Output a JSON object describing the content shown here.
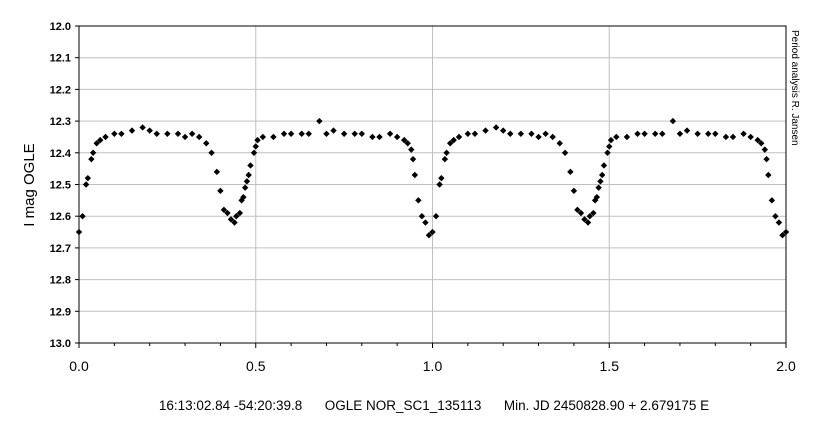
{
  "chart_data": {
    "type": "scatter",
    "ylabel": "I mag OGLE",
    "xlabel": "",
    "xlim": [
      0.0,
      2.0
    ],
    "ylim": [
      12.0,
      13.0
    ],
    "y_inverted": true,
    "grid": true,
    "x_ticks": [
      "0.0",
      "0.5",
      "1.0",
      "1.5",
      "2.0"
    ],
    "y_ticks": [
      "12.0",
      "12.1",
      "12.2",
      "12.3",
      "12.4",
      "12.5",
      "12.6",
      "12.7",
      "12.8",
      "12.9",
      "13.0"
    ],
    "footer_text": "16:13:02.84 -54:20:39.8      OGLE NOR_SC1_135113      Min. JD 2450828.90 + 2.679175 E",
    "side_text": "Period analysis R. Jansen",
    "marker_color": "#000000",
    "series": [
      {
        "marker": "diamond",
        "x": [
          0.0,
          0.01,
          0.02,
          0.025,
          0.035,
          0.04,
          0.05,
          0.06,
          0.075,
          0.1,
          0.12,
          0.15,
          0.18,
          0.2,
          0.22,
          0.25,
          0.28,
          0.3,
          0.32,
          0.34,
          0.36,
          0.375,
          0.39,
          0.4,
          0.41,
          0.42,
          0.43,
          0.44,
          0.445,
          0.455,
          0.46,
          0.465,
          0.47,
          0.475,
          0.48,
          0.485,
          0.495,
          0.5,
          0.505,
          0.52,
          0.55,
          0.58,
          0.6,
          0.63,
          0.65,
          0.68,
          0.7,
          0.72,
          0.75,
          0.78,
          0.8,
          0.83,
          0.85,
          0.88,
          0.9,
          0.92,
          0.93,
          0.94,
          0.945,
          0.95,
          0.96,
          0.97,
          0.98,
          0.99,
          1.0,
          1.01,
          1.02,
          1.025,
          1.035,
          1.04,
          1.05,
          1.06,
          1.075,
          1.1,
          1.12,
          1.15,
          1.18,
          1.2,
          1.22,
          1.25,
          1.28,
          1.3,
          1.32,
          1.34,
          1.36,
          1.375,
          1.39,
          1.4,
          1.41,
          1.42,
          1.43,
          1.44,
          1.445,
          1.455,
          1.46,
          1.465,
          1.47,
          1.475,
          1.48,
          1.485,
          1.495,
          1.5,
          1.505,
          1.52,
          1.55,
          1.58,
          1.6,
          1.63,
          1.65,
          1.68,
          1.7,
          1.72,
          1.75,
          1.78,
          1.8,
          1.83,
          1.85,
          1.88,
          1.9,
          1.92,
          1.93,
          1.94,
          1.945,
          1.95,
          1.96,
          1.97,
          1.98,
          1.99,
          2.0
        ],
        "y": [
          12.65,
          12.6,
          12.5,
          12.48,
          12.42,
          12.4,
          12.37,
          12.36,
          12.35,
          12.34,
          12.34,
          12.33,
          12.32,
          12.33,
          12.34,
          12.34,
          12.34,
          12.35,
          12.34,
          12.35,
          12.37,
          12.4,
          12.46,
          12.52,
          12.58,
          12.59,
          12.61,
          12.62,
          12.6,
          12.59,
          12.55,
          12.54,
          12.51,
          12.49,
          12.47,
          12.44,
          12.4,
          12.38,
          12.36,
          12.35,
          12.35,
          12.34,
          12.34,
          12.34,
          12.34,
          12.3,
          12.34,
          12.33,
          12.34,
          12.34,
          12.34,
          12.35,
          12.35,
          12.34,
          12.35,
          12.36,
          12.37,
          12.39,
          12.42,
          12.47,
          12.55,
          12.6,
          12.62,
          12.66,
          12.65,
          12.6,
          12.5,
          12.48,
          12.42,
          12.4,
          12.37,
          12.36,
          12.35,
          12.34,
          12.34,
          12.33,
          12.32,
          12.33,
          12.34,
          12.34,
          12.34,
          12.35,
          12.34,
          12.35,
          12.37,
          12.4,
          12.46,
          12.52,
          12.58,
          12.59,
          12.61,
          12.62,
          12.6,
          12.59,
          12.55,
          12.54,
          12.51,
          12.49,
          12.47,
          12.44,
          12.4,
          12.38,
          12.36,
          12.35,
          12.35,
          12.34,
          12.34,
          12.34,
          12.34,
          12.3,
          12.34,
          12.33,
          12.34,
          12.34,
          12.34,
          12.35,
          12.35,
          12.34,
          12.35,
          12.36,
          12.37,
          12.39,
          12.42,
          12.47,
          12.55,
          12.6,
          12.62,
          12.66,
          12.65
        ]
      }
    ]
  }
}
